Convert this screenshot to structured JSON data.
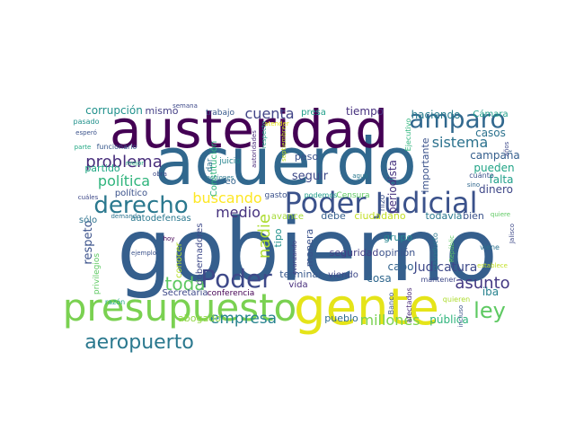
{
  "palette": [
    "#440154",
    "#3b528b",
    "#21918c",
    "#5ec962",
    "#fde725"
  ],
  "words": [
    {
      "text": "gobierno",
      "color": "#355f8d"
    },
    {
      "text": "acuerdo",
      "color": "#31688e"
    },
    {
      "text": "gente",
      "color": "#e5e419"
    },
    {
      "text": "austeridad",
      "color": "#440154"
    },
    {
      "text": "presupuesto",
      "color": "#7ad151"
    },
    {
      "text": "Poder Judicial",
      "color": "#3b528b"
    },
    {
      "text": "amparo",
      "color": "#31688e"
    },
    {
      "text": "derecho",
      "color": "#2a788e"
    },
    {
      "text": "Poder",
      "color": "#3e4989"
    },
    {
      "text": "ley",
      "color": "#5ec962"
    },
    {
      "text": "aeropuerto",
      "color": "#2a788e"
    },
    {
      "text": "problema",
      "color": "#472d7b"
    },
    {
      "text": "política",
      "color": "#2fb47c"
    },
    {
      "text": "buscando",
      "color": "#fde725"
    },
    {
      "text": "cuenta",
      "color": "#414487"
    },
    {
      "text": "toda",
      "color": "#5ec962"
    },
    {
      "text": "empresa",
      "color": "#26828e"
    },
    {
      "text": "millones",
      "color": "#7ad151"
    },
    {
      "text": "asunto",
      "color": "#443983"
    },
    {
      "text": "medio",
      "color": "#46327e"
    },
    {
      "text": "sistema",
      "color": "#2c728e"
    },
    {
      "text": "nadie",
      "color": "#addc30"
    },
    {
      "text": "respeto",
      "color": "#3b528b"
    },
    {
      "text": "corrupción",
      "color": "#21918c"
    },
    {
      "text": "mismo",
      "color": "#433e85"
    },
    {
      "text": "tiempo",
      "color": "#46307e"
    },
    {
      "text": "haciendo",
      "color": "#287c8e"
    },
    {
      "text": "Cámara",
      "color": "#1f9e89"
    },
    {
      "text": "casos",
      "color": "#2c728e"
    },
    {
      "text": "campaña",
      "color": "#355f8d"
    },
    {
      "text": "pueden",
      "color": "#20a486"
    },
    {
      "text": "falta",
      "color": "#1f9e89"
    },
    {
      "text": "dinero",
      "color": "#3f4788"
    },
    {
      "text": "partido",
      "color": "#22a884"
    },
    {
      "text": "político",
      "color": "#3b528b"
    },
    {
      "text": "seguir",
      "color": "#3e4989"
    },
    {
      "text": "periodista",
      "color": "#46327e"
    },
    {
      "text": "importante",
      "color": "#3b528b"
    },
    {
      "text": "Judicatura",
      "color": "#3e4989"
    },
    {
      "text": "grupo",
      "color": "#25848e"
    },
    {
      "text": "opinión",
      "color": "#3b528b"
    },
    {
      "text": "cabo",
      "color": "#33638d"
    },
    {
      "text": "cosa",
      "color": "#31688e"
    },
    {
      "text": "pueblo",
      "color": "#2f6c8e"
    },
    {
      "text": "pública",
      "color": "#2fb47c"
    },
    {
      "text": "iba",
      "color": "#26828e"
    },
    {
      "text": "abogado",
      "color": "#90d743"
    },
    {
      "text": "terminar",
      "color": "#38598c"
    },
    {
      "text": "viendo",
      "color": "#3e4989"
    },
    {
      "text": "seguridad",
      "color": "#433e85"
    },
    {
      "text": "ciudadano",
      "color": "#c2df23"
    },
    {
      "text": "todavía",
      "color": "#2a788e"
    },
    {
      "text": "bien",
      "color": "#3b528b"
    },
    {
      "text": "debe",
      "color": "#355f8d"
    },
    {
      "text": "avance",
      "color": "#a5db36"
    },
    {
      "text": "vida",
      "color": "#472d7b"
    },
    {
      "text": "tipo",
      "color": "#21918c"
    },
    {
      "text": "manera",
      "color": "#3b528b"
    },
    {
      "text": "gobernadores",
      "color": "#3e4989"
    },
    {
      "text": "Secretaría",
      "color": "#3e4989"
    },
    {
      "text": "conferencia",
      "color": "#440154"
    },
    {
      "text": "autodefensas",
      "color": "#2a788e"
    },
    {
      "text": "sólo",
      "color": "#2c728e"
    },
    {
      "text": "privilegios",
      "color": "#5ec962"
    },
    {
      "text": "conocer",
      "color": "#b5de2b"
    },
    {
      "text": "Constitución",
      "color": "#2fb47c"
    },
    {
      "text": "creo",
      "color": "#33638d"
    },
    {
      "text": "dar",
      "color": "#2c728e"
    },
    {
      "text": "juicio",
      "color": "#25848e"
    },
    {
      "text": "peso",
      "color": "#3b528b"
    },
    {
      "text": "presa",
      "color": "#1f9e89"
    },
    {
      "text": "trabajo",
      "color": "#38598c"
    },
    {
      "text": "semana",
      "color": "#3e4989"
    },
    {
      "text": "pasado",
      "color": "#21918c"
    },
    {
      "text": "esperó",
      "color": "#3b528b"
    },
    {
      "text": "parte",
      "color": "#22a884"
    },
    {
      "text": "funcionario",
      "color": "#38598c"
    },
    {
      "text": "mejor",
      "color": "#29af7f"
    },
    {
      "text": "cuáles",
      "color": "#3e4989"
    },
    {
      "text": "demanda",
      "color": "#2c728e"
    },
    {
      "text": "hoy",
      "color": "#440154"
    },
    {
      "text": "ejemplo",
      "color": "#3b528b"
    },
    {
      "text": "razón",
      "color": "#22a884"
    },
    {
      "text": "obra",
      "color": "#3e4989"
    },
    {
      "text": "acciones",
      "color": "#2a788e"
    },
    {
      "text": "autoridades",
      "color": "#482878"
    },
    {
      "text": "respecto",
      "color": "#20a486"
    },
    {
      "text": "septiembre",
      "color": "#c2df23"
    },
    {
      "text": "atender",
      "color": "#e5e419"
    },
    {
      "text": "gasto",
      "color": "#3b528b"
    },
    {
      "text": "podemos",
      "color": "#1f9e89"
    },
    {
      "text": "Censura",
      "color": "#5ec962"
    },
    {
      "text": "hizo",
      "color": "#3b528b"
    },
    {
      "text": "agua",
      "color": "#2a788e"
    },
    {
      "text": "avanzando",
      "color": "#433e85"
    },
    {
      "text": "mantener",
      "color": "#3e4989"
    },
    {
      "text": "gasoducto",
      "color": "#2a788e"
    },
    {
      "text": "Banco",
      "color": "#3b528b"
    },
    {
      "text": "afectados",
      "color": "#482878"
    },
    {
      "text": "quieren",
      "color": "#addc30"
    },
    {
      "text": "incluso",
      "color": "#3b528b"
    },
    {
      "text": "viene",
      "color": "#2c728e"
    },
    {
      "text": "establece",
      "color": "#c2df23"
    },
    {
      "text": "quiere",
      "color": "#5ec962"
    },
    {
      "text": "Jalisco",
      "color": "#3e4989"
    },
    {
      "text": "Repúblic",
      "color": "#5ec962"
    },
    {
      "text": "cuánto",
      "color": "#3b528b"
    },
    {
      "text": "sino",
      "color": "#31688e"
    },
    {
      "text": "años",
      "color": "#3e4989"
    },
    {
      "text": "Ejecutivo",
      "color": "#2fb47c"
    }
  ]
}
